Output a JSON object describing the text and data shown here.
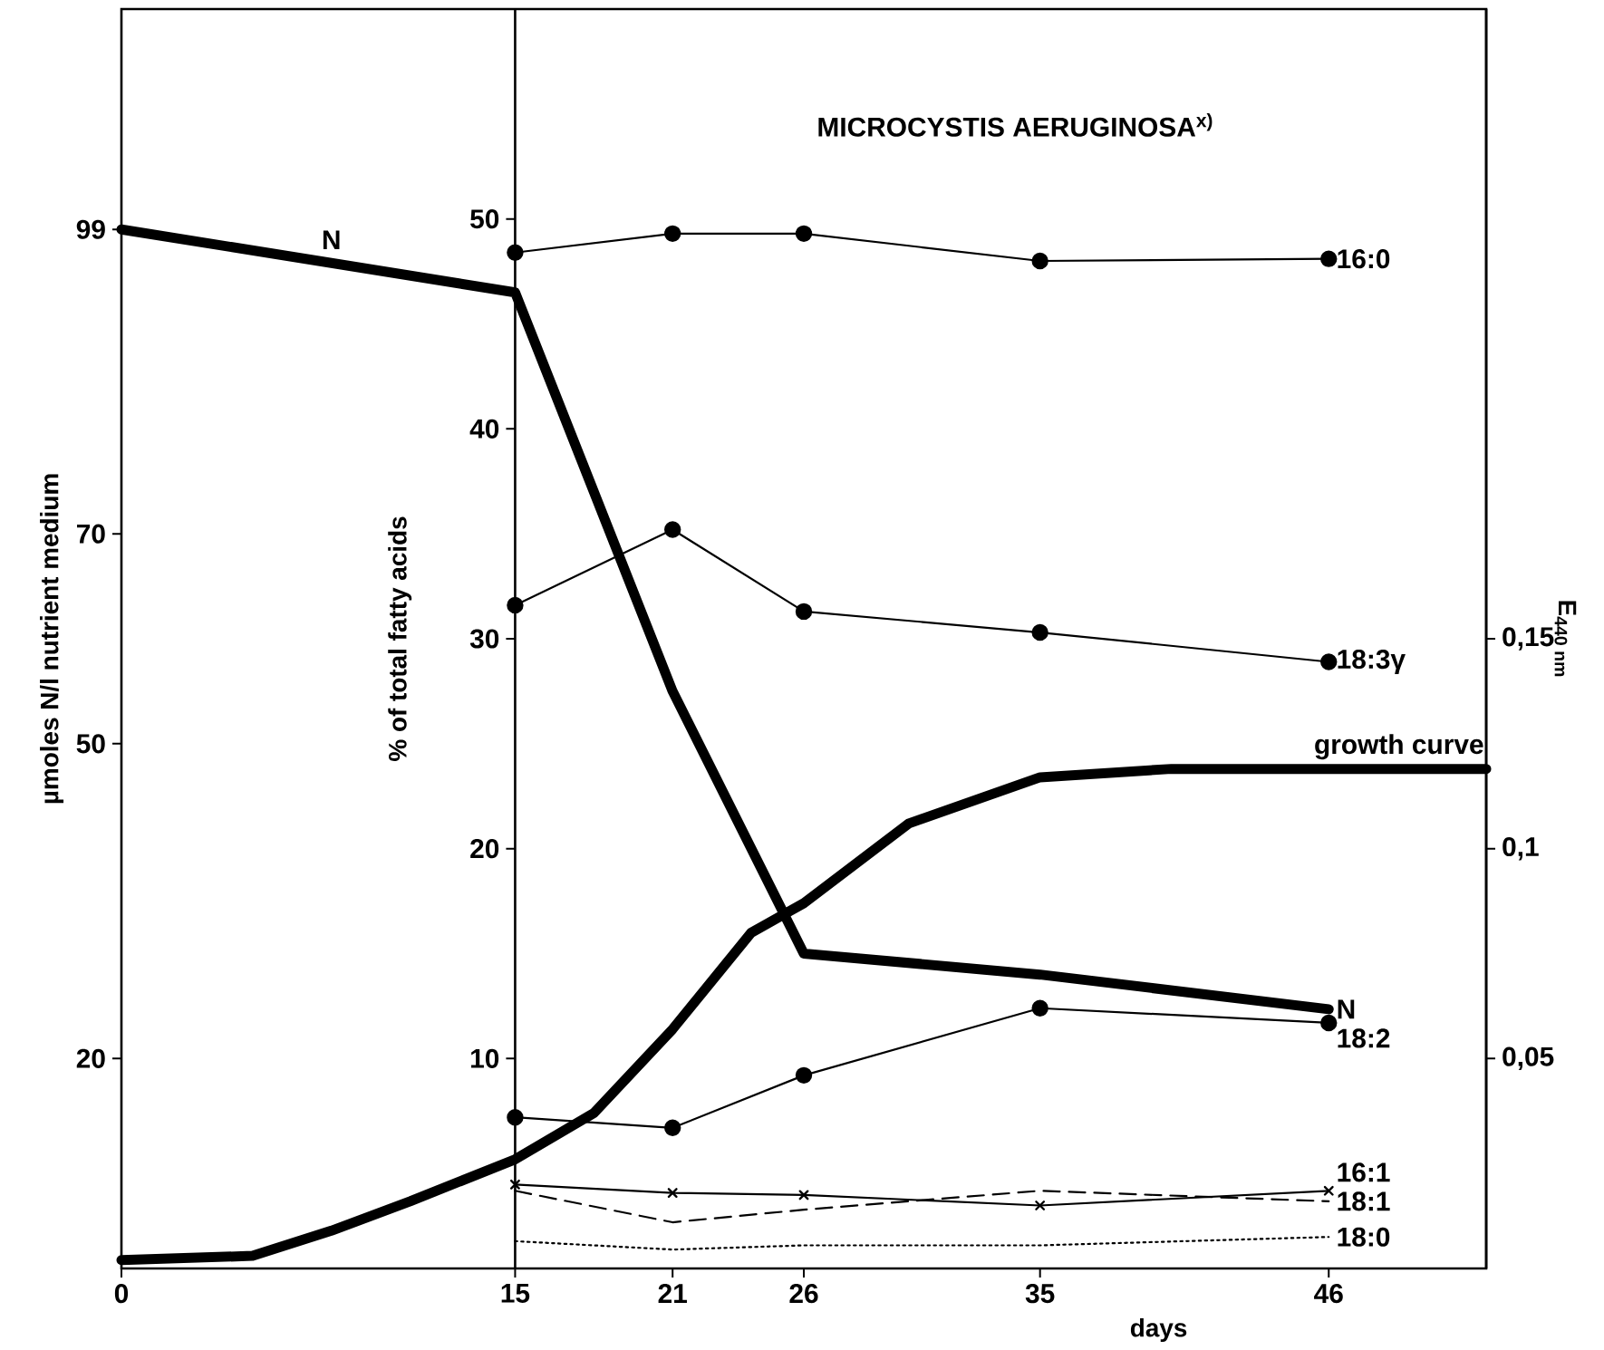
{
  "chart_data": {
    "type": "line",
    "title": "MICROCYSTIS AERUGINOSA$^{x)}$",
    "xlabel": "days",
    "ylabel": "µmoles N/l nutrient medium",
    "y2label": "% of total fatty acids",
    "y3label": "E$_{440 nm}$",
    "x": [
      15,
      21,
      26,
      35,
      46
    ],
    "xlim": [
      0,
      52
    ],
    "xticks": [
      0,
      15,
      21,
      26,
      35,
      46
    ],
    "ylim": [
      0,
      120
    ],
    "yticks": [
      20,
      50,
      70,
      99
    ],
    "y2lim": [
      0,
      60
    ],
    "y2ticks": [
      10,
      20,
      30,
      40,
      50
    ],
    "y3lim": [
      0,
      0.3
    ],
    "y3ticks": [
      {
        "value": 0.05,
        "label": "0,05"
      },
      {
        "value": 0.1,
        "label": "0,1"
      },
      {
        "value": 0.15,
        "label": "0,15"
      }
    ],
    "grid": false,
    "annotations": [
      {
        "text": "N",
        "x": 8,
        "y": 96
      }
    ],
    "series": [
      {
        "name": "16:0",
        "color": "#000000",
        "axis": "y2",
        "marker": "circle",
        "line_style": "solid",
        "values": [
          48.4,
          49.3,
          49.3,
          48.0,
          48.1
        ]
      },
      {
        "name": "18:3γ",
        "color": "#000000",
        "axis": "y2",
        "marker": "circle",
        "line_style": "solid",
        "values": [
          31.6,
          35.2,
          31.3,
          30.3,
          28.9
        ]
      },
      {
        "name": "18:2",
        "color": "#000000",
        "axis": "y2",
        "marker": "circle",
        "line_style": "solid",
        "values": [
          7.2,
          6.7,
          9.2,
          12.4,
          11.7
        ]
      },
      {
        "name": "16:1",
        "color": "#000000",
        "axis": "y2",
        "marker": "cross",
        "line_style": "solid",
        "values": [
          4.0,
          3.6,
          3.5,
          3.0,
          3.7
        ]
      },
      {
        "name": "18:1",
        "color": "#000000",
        "axis": "y2",
        "marker": "none",
        "line_style": "dashed",
        "values": [
          3.7,
          2.2,
          2.8,
          3.7,
          3.2
        ]
      },
      {
        "name": "18:0",
        "color": "#000000",
        "axis": "y2",
        "marker": "none",
        "line_style": "dotted",
        "values": [
          1.3,
          0.9,
          1.1,
          1.1,
          1.5
        ]
      },
      {
        "name": "N",
        "color": "#000000",
        "axis": "y",
        "marker": "none",
        "line_style": "solid",
        "x": [
          0,
          15,
          21,
          26,
          35,
          46
        ],
        "values": [
          99,
          93,
          55,
          30,
          28,
          24.7
        ]
      },
      {
        "name": "growth curve",
        "color": "#000000",
        "axis": "y3",
        "marker": "none",
        "line_style": "solid",
        "x": [
          0,
          5,
          8,
          11,
          15,
          18,
          21,
          24,
          26,
          30,
          35,
          40,
          46,
          52
        ],
        "values": [
          0.002,
          0.003,
          0.009,
          0.016,
          0.026,
          0.037,
          0.057,
          0.08,
          0.087,
          0.106,
          0.117,
          0.119,
          0.119,
          0.119
        ]
      }
    ]
  }
}
